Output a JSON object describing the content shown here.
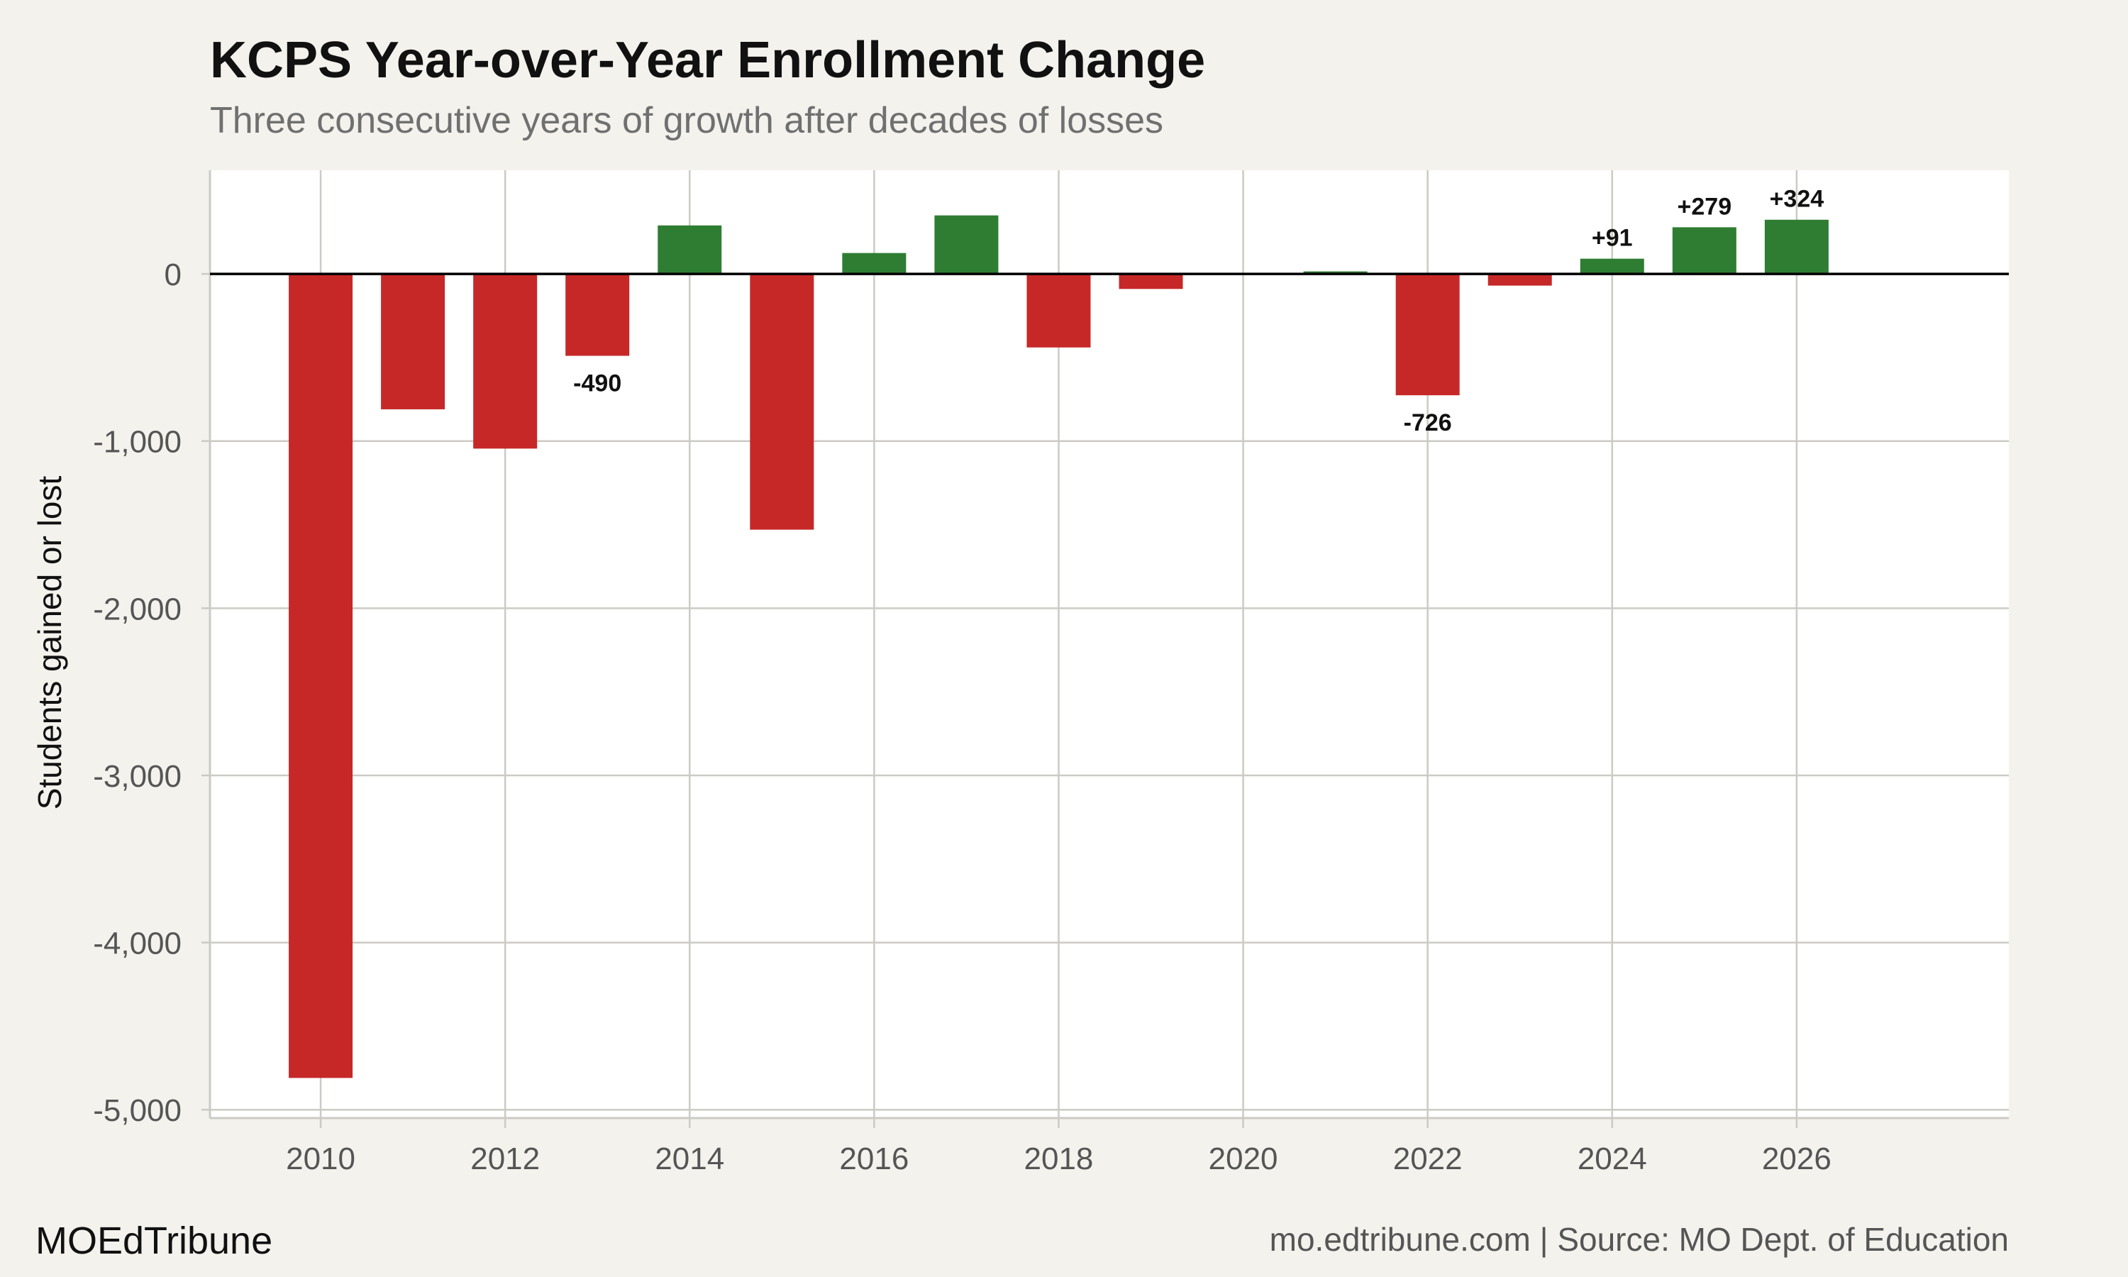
{
  "chart_data": {
    "type": "bar",
    "title": "KCPS Year-over-Year Enrollment Change",
    "subtitle": "Three consecutive years of growth after decades of losses",
    "ylabel": "Students gained or lost",
    "xlabel": "",
    "x": [
      2010,
      2011,
      2012,
      2013,
      2014,
      2015,
      2016,
      2017,
      2018,
      2019,
      2021,
      2022,
      2023,
      2024,
      2025,
      2026
    ],
    "values": [
      -4810,
      -810,
      -1045,
      -490,
      290,
      -1530,
      125,
      350,
      -440,
      -90,
      15,
      -726,
      -70,
      91,
      279,
      324
    ],
    "data_labels": [
      {
        "x": 2013,
        "text": "-490"
      },
      {
        "x": 2022,
        "text": "-726"
      },
      {
        "x": 2024,
        "text": "+91"
      },
      {
        "x": 2025,
        "text": "+279"
      },
      {
        "x": 2026,
        "text": "+324"
      }
    ],
    "xlim": [
      2008.8,
      2028.3
    ],
    "ylim": [
      -5050,
      620
    ],
    "xticks": [
      2010,
      2012,
      2014,
      2016,
      2018,
      2020,
      2022,
      2024,
      2026
    ],
    "yticks": [
      0,
      -1000,
      -2000,
      -3000,
      -4000,
      -5000
    ],
    "ytick_labels": [
      "0",
      "-1,000",
      "-2,000",
      "-3,000",
      "-4,000",
      "-5,000"
    ],
    "grid": true,
    "legend": "none",
    "colors": {
      "positive": "#2e7d32",
      "negative": "#c62828",
      "zero_line": "#000000",
      "grid": "#cccac4"
    }
  },
  "footer": {
    "brand": "MOEdTribune",
    "source": "mo.edtribune.com | Source: MO Dept. of Education"
  }
}
